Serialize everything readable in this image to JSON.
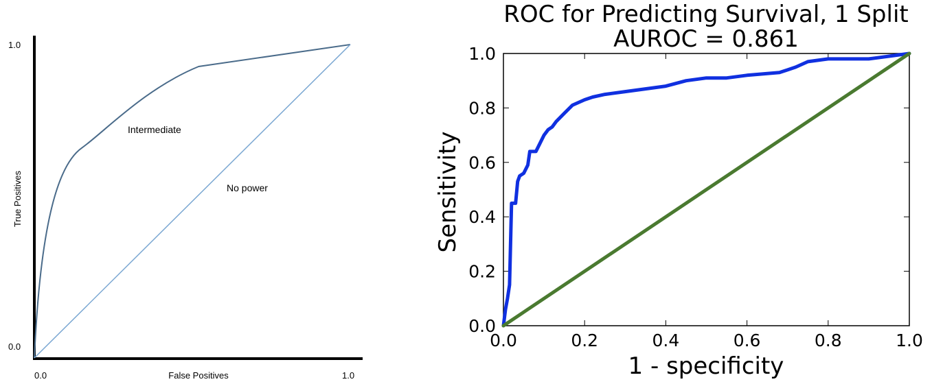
{
  "chart_data": [
    {
      "type": "line",
      "title": "",
      "xlabel": "False Positives",
      "ylabel": "True Positives",
      "xlim": [
        0,
        1
      ],
      "ylim": [
        0,
        1
      ],
      "xticks": [
        "0.0",
        "1.0"
      ],
      "yticks": [
        "0.0",
        "1.0"
      ],
      "grid": false,
      "series": [
        {
          "name": "Intermediate",
          "color": "#4a6b8a",
          "points": [
            [
              0,
              0
            ],
            [
              0.03,
              0.25
            ],
            [
              0.07,
              0.47
            ],
            [
              0.13,
              0.62
            ],
            [
              0.2,
              0.71
            ],
            [
              0.3,
              0.8
            ],
            [
              0.4,
              0.87
            ],
            [
              0.5,
              0.93
            ],
            [
              0.7,
              0.96
            ],
            [
              1,
              1
            ]
          ]
        },
        {
          "name": "No power",
          "color": "#7aa7d2",
          "points": [
            [
              0,
              0
            ],
            [
              1,
              1
            ]
          ]
        }
      ]
    },
    {
      "type": "line",
      "title": "ROC for Predicting Survival, 1 Split",
      "subtitle": "AUROC = 0.861",
      "xlabel": "1 - specificity",
      "ylabel": "Sensitivity",
      "xlim": [
        0,
        1
      ],
      "ylim": [
        0,
        1
      ],
      "xticks": [
        "0.0",
        "0.2",
        "0.4",
        "0.6",
        "0.8",
        "1.0"
      ],
      "yticks": [
        "0.0",
        "0.2",
        "0.4",
        "0.6",
        "0.8",
        "1.0"
      ],
      "grid": false,
      "series": [
        {
          "color": "#1030e0",
          "points": [
            [
              0,
              0
            ],
            [
              0.005,
              0.06
            ],
            [
              0.01,
              0.1
            ],
            [
              0.015,
              0.15
            ],
            [
              0.02,
              0.45
            ],
            [
              0.03,
              0.45
            ],
            [
              0.035,
              0.53
            ],
            [
              0.04,
              0.55
            ],
            [
              0.05,
              0.56
            ],
            [
              0.06,
              0.59
            ],
            [
              0.065,
              0.64
            ],
            [
              0.08,
              0.64
            ],
            [
              0.09,
              0.67
            ],
            [
              0.1,
              0.7
            ],
            [
              0.11,
              0.72
            ],
            [
              0.12,
              0.73
            ],
            [
              0.13,
              0.75
            ],
            [
              0.15,
              0.78
            ],
            [
              0.17,
              0.81
            ],
            [
              0.2,
              0.83
            ],
            [
              0.22,
              0.84
            ],
            [
              0.25,
              0.85
            ],
            [
              0.3,
              0.86
            ],
            [
              0.35,
              0.87
            ],
            [
              0.4,
              0.88
            ],
            [
              0.45,
              0.9
            ],
            [
              0.5,
              0.91
            ],
            [
              0.55,
              0.91
            ],
            [
              0.6,
              0.92
            ],
            [
              0.68,
              0.93
            ],
            [
              0.72,
              0.95
            ],
            [
              0.75,
              0.97
            ],
            [
              0.8,
              0.98
            ],
            [
              0.9,
              0.98
            ],
            [
              0.95,
              0.99
            ],
            [
              1,
              1
            ]
          ]
        },
        {
          "color": "#4a7a30",
          "points": [
            [
              0,
              0
            ],
            [
              1,
              1
            ]
          ]
        }
      ]
    }
  ]
}
